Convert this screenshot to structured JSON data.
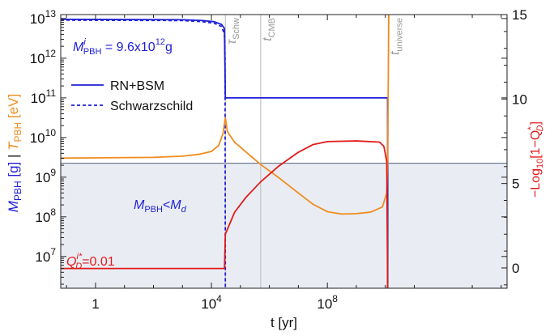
{
  "chart_data": {
    "type": "line",
    "xlabel": "t [yr]",
    "xscale": "log",
    "xlim_log10": [
      -1.2,
      14.2
    ],
    "x_ticks": [
      {
        "log10": 0,
        "label": "1"
      },
      {
        "log10": 4,
        "label": "10",
        "sup": "4"
      },
      {
        "log10": 8,
        "label": "10",
        "sup": "8"
      }
    ],
    "left_axis": {
      "label_parts": [
        {
          "text": "M",
          "italic": true,
          "color": "#1f1fd6"
        },
        {
          "text": "PBH",
          "sub": true,
          "color": "#1f1fd6"
        },
        {
          "text": " [g]  ",
          "color": "#1f1fd6"
        },
        {
          "text": "|  ",
          "color": "#111111"
        },
        {
          "text": "T",
          "italic": true,
          "color": "#f08c1e"
        },
        {
          "text": "PBH",
          "sub": true,
          "color": "#f08c1e"
        },
        {
          "text": " [eV]",
          "color": "#f08c1e"
        }
      ],
      "scale": "log",
      "ylim_log10": [
        6.2,
        13.1
      ],
      "ticks": [
        {
          "log10": 7,
          "label": "10",
          "sup": "7"
        },
        {
          "log10": 8,
          "label": "10",
          "sup": "8"
        },
        {
          "log10": 9,
          "label": "10",
          "sup": "9"
        },
        {
          "log10": 10,
          "label": "10",
          "sup": "10"
        },
        {
          "log10": 11,
          "label": "10",
          "sup": "11"
        },
        {
          "log10": 12,
          "label": "10",
          "sup": "12"
        },
        {
          "log10": 13,
          "label": "10",
          "sup": "13"
        }
      ]
    },
    "right_axis": {
      "label": "−Log10[1−Q*D]",
      "ylim": [
        -1.2,
        15
      ],
      "ticks": [
        0,
        5,
        10,
        15
      ]
    },
    "vertical_lines": [
      {
        "log10_t": 4.48,
        "label": "τ",
        "sub": "Schw"
      },
      {
        "log10_t": 5.7,
        "label": "t",
        "sub": "CMB"
      },
      {
        "log10_t": 10.1,
        "label": "t",
        "sub": "universe"
      }
    ],
    "shaded_region": {
      "label": "M",
      "sub": "PBH",
      "rel": "<",
      "label2": "M",
      "sub2": "d",
      "upper_log10": 9.35,
      "color": "#e9edf3"
    },
    "series": [
      {
        "name": "RN+BSM",
        "axis": "left",
        "color": "#1f1fd6",
        "dash": "solid",
        "points_log10": [
          [
            -1.2,
            12.98
          ],
          [
            3.0,
            12.97
          ],
          [
            3.7,
            12.95
          ],
          [
            4.1,
            12.92
          ],
          [
            4.35,
            12.85
          ],
          [
            4.45,
            12.75
          ],
          [
            4.48,
            11.0
          ],
          [
            10.08,
            11.0
          ],
          [
            10.08,
            6.2
          ]
        ]
      },
      {
        "name": "Schwarzschild",
        "axis": "left",
        "color": "#1f1fd6",
        "dash": "dashed",
        "points_log10": [
          [
            -1.2,
            12.96
          ],
          [
            3.0,
            12.95
          ],
          [
            3.7,
            12.92
          ],
          [
            4.1,
            12.88
          ],
          [
            4.35,
            12.8
          ],
          [
            4.45,
            12.6
          ],
          [
            4.47,
            12.0
          ],
          [
            4.48,
            6.2
          ]
        ]
      },
      {
        "axis": "left",
        "color": "#f08c1e",
        "dash": "solid",
        "points_log10": [
          [
            -1.2,
            9.48
          ],
          [
            2.0,
            9.5
          ],
          [
            3.0,
            9.53
          ],
          [
            3.6,
            9.58
          ],
          [
            4.0,
            9.65
          ],
          [
            4.25,
            9.8
          ],
          [
            4.4,
            10.1
          ],
          [
            4.48,
            10.5
          ],
          [
            4.55,
            10.15
          ],
          [
            4.8,
            9.88
          ],
          [
            5.2,
            9.63
          ],
          [
            5.7,
            9.32
          ],
          [
            6.3,
            9.0
          ],
          [
            7.0,
            8.6
          ],
          [
            7.5,
            8.32
          ],
          [
            8.0,
            8.13
          ],
          [
            8.5,
            8.07
          ],
          [
            9.0,
            8.08
          ],
          [
            9.5,
            8.12
          ],
          [
            9.9,
            8.25
          ],
          [
            10.05,
            8.6
          ],
          [
            10.08,
            9.5
          ],
          [
            10.12,
            13.1
          ]
        ]
      },
      {
        "axis": "right",
        "color": "#e21b1b",
        "dash": "solid",
        "points": [
          [
            -1.2,
            -0.03
          ],
          [
            4.45,
            -0.03
          ],
          [
            4.48,
            2.0
          ],
          [
            4.8,
            3.3
          ],
          [
            5.2,
            4.2
          ],
          [
            5.7,
            5.1
          ],
          [
            6.3,
            6.0
          ],
          [
            7.0,
            6.85
          ],
          [
            7.5,
            7.3
          ],
          [
            8.0,
            7.48
          ],
          [
            9.0,
            7.52
          ],
          [
            9.8,
            7.45
          ],
          [
            9.95,
            7.2
          ],
          [
            10.05,
            6.3
          ],
          [
            10.08,
            -1.2
          ]
        ]
      }
    ],
    "legend": {
      "position": "top-left",
      "entries": [
        {
          "label": "RN+BSM",
          "dash": "solid",
          "color": "#1f1fd6"
        },
        {
          "label": "Schwarzschild",
          "dash": "dashed",
          "color": "#1f1fd6"
        }
      ]
    },
    "annotations": [
      {
        "id": "mass-init",
        "color": "#1f1fd6",
        "text": "M",
        "sup": "i",
        "sub": "PBH",
        "rest": " = 9.6x10",
        "rest_sup": "12",
        "tail": "g"
      },
      {
        "id": "charge-init",
        "color": "#e21b1b",
        "text": "Q",
        "sup": "i*",
        "sub": "D",
        "rest": "=0.01"
      }
    ]
  }
}
